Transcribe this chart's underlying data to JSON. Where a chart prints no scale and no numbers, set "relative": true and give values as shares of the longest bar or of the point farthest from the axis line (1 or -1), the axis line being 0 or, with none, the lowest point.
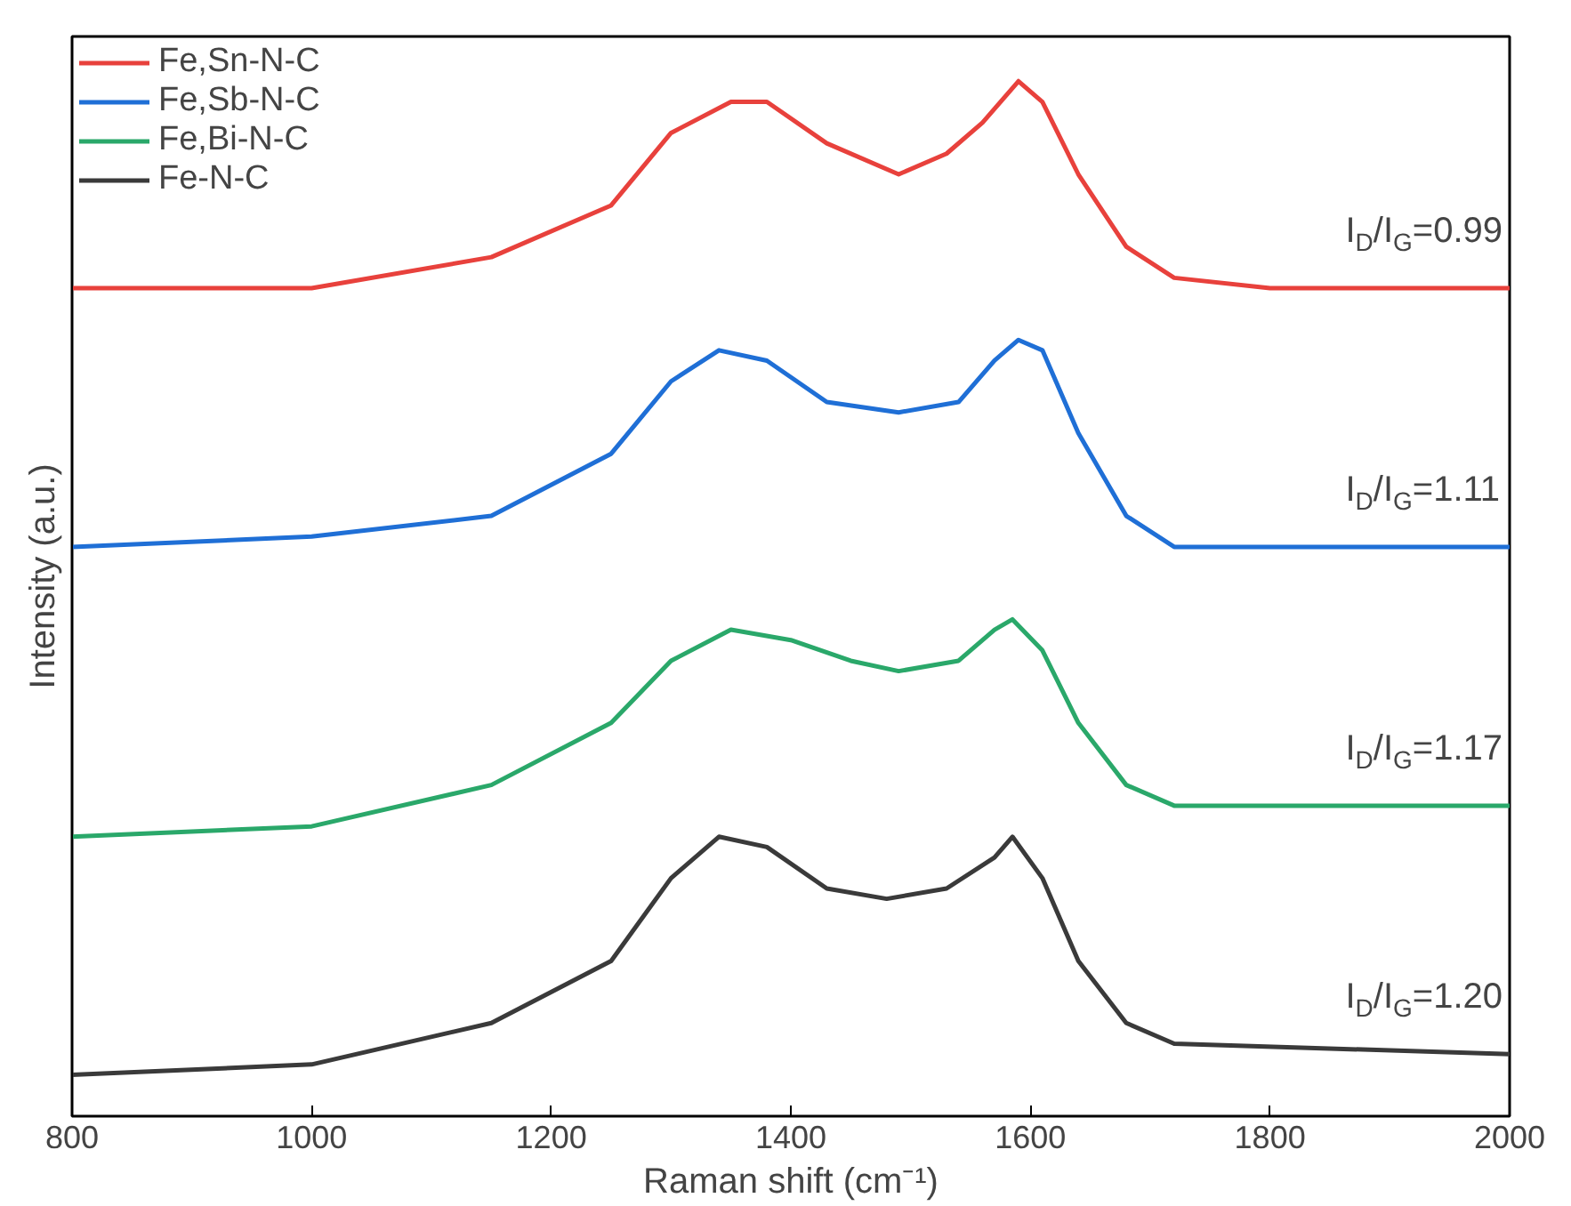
{
  "chart_data": {
    "type": "line",
    "relative": true,
    "xlabel": "Raman shift (cm⁻¹)",
    "ylabel": "Intensity (a.u.)",
    "xlim": [
      800,
      2000
    ],
    "xticks": [
      800,
      1000,
      1200,
      1400,
      1600,
      1800,
      2000
    ],
    "tick_labels": "x",
    "grid": false,
    "legend": "top left",
    "marker": "none",
    "line_style": "solid",
    "series": [
      {
        "name": "Fe,Sn-N-C",
        "color": "#e8413c",
        "x": [
          800,
          1000,
          1150,
          1250,
          1300,
          1350,
          1380,
          1430,
          1490,
          1530,
          1560,
          1590,
          1610,
          1640,
          1680,
          1720,
          1800,
          2000
        ],
        "values": [
          0.8,
          0.8,
          0.83,
          0.88,
          0.95,
          0.98,
          0.98,
          0.94,
          0.91,
          0.93,
          0.96,
          1.0,
          0.98,
          0.91,
          0.84,
          0.81,
          0.8,
          0.8
        ]
      },
      {
        "name": "Fe,Sb-N-C",
        "color": "#1f6fd6",
        "x": [
          800,
          1000,
          1150,
          1250,
          1300,
          1340,
          1380,
          1430,
          1490,
          1540,
          1570,
          1590,
          1610,
          1640,
          1680,
          1720,
          2000
        ],
        "values": [
          0.55,
          0.56,
          0.58,
          0.64,
          0.71,
          0.74,
          0.73,
          0.69,
          0.68,
          0.69,
          0.73,
          0.75,
          0.74,
          0.66,
          0.58,
          0.55,
          0.55
        ]
      },
      {
        "name": "Fe,Bi-N-C",
        "color": "#2aa86a",
        "x": [
          800,
          1000,
          1150,
          1250,
          1300,
          1350,
          1400,
          1450,
          1490,
          1540,
          1570,
          1585,
          1610,
          1640,
          1680,
          1720,
          2000
        ],
        "values": [
          0.27,
          0.28,
          0.32,
          0.38,
          0.44,
          0.47,
          0.46,
          0.44,
          0.43,
          0.44,
          0.47,
          0.48,
          0.45,
          0.38,
          0.32,
          0.3,
          0.3
        ]
      },
      {
        "name": "Fe-N-C",
        "color": "#3a3a3a",
        "x": [
          800,
          1000,
          1150,
          1250,
          1300,
          1340,
          1380,
          1430,
          1480,
          1530,
          1570,
          1585,
          1610,
          1640,
          1680,
          1720,
          2000
        ],
        "values": [
          0.04,
          0.05,
          0.09,
          0.15,
          0.23,
          0.27,
          0.26,
          0.22,
          0.21,
          0.22,
          0.25,
          0.27,
          0.23,
          0.15,
          0.09,
          0.07,
          0.06
        ]
      }
    ],
    "annotations": [
      "I$_{D}$/I$_{G}$=0.99",
      "I$_{D}$/I$_{G}$=1.11",
      "I$_{D}$/I$_{G}$=1.17",
      "I$_{D}$/I$_{G}$=1.20"
    ]
  }
}
